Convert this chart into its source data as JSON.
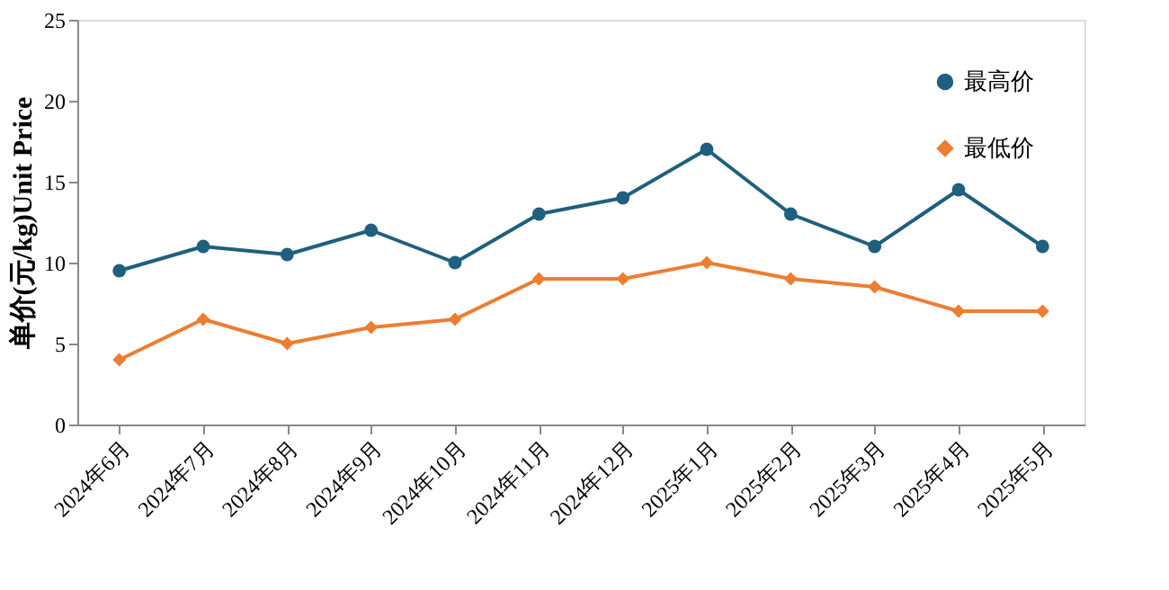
{
  "chart_data": {
    "type": "line",
    "ylabel": "单价(元/kg)Unit Price",
    "categories": [
      "2024年6月",
      "2024年7月",
      "2024年8月",
      "2024年9月",
      "2024年10月",
      "2024年11月",
      "2024年12月",
      "2025年1月",
      "2025年2月",
      "2025年3月",
      "2025年4月",
      "2025年5月"
    ],
    "series": [
      {
        "name": "最高价",
        "color": "#1f5f7f",
        "marker": "circle",
        "values": [
          9.5,
          11,
          10.5,
          12,
          10,
          13,
          14,
          17,
          13,
          11,
          14.5,
          11
        ]
      },
      {
        "name": "最低价",
        "color": "#ed7d31",
        "marker": "diamond",
        "values": [
          4,
          6.5,
          5,
          6,
          6.5,
          9,
          9,
          10,
          9,
          8.5,
          7,
          7
        ]
      }
    ],
    "ylim": [
      0,
      25
    ],
    "yticks": [
      0,
      5,
      10,
      15,
      20,
      25
    ],
    "grid": false,
    "legend": "top right",
    "line_style": "solid"
  }
}
